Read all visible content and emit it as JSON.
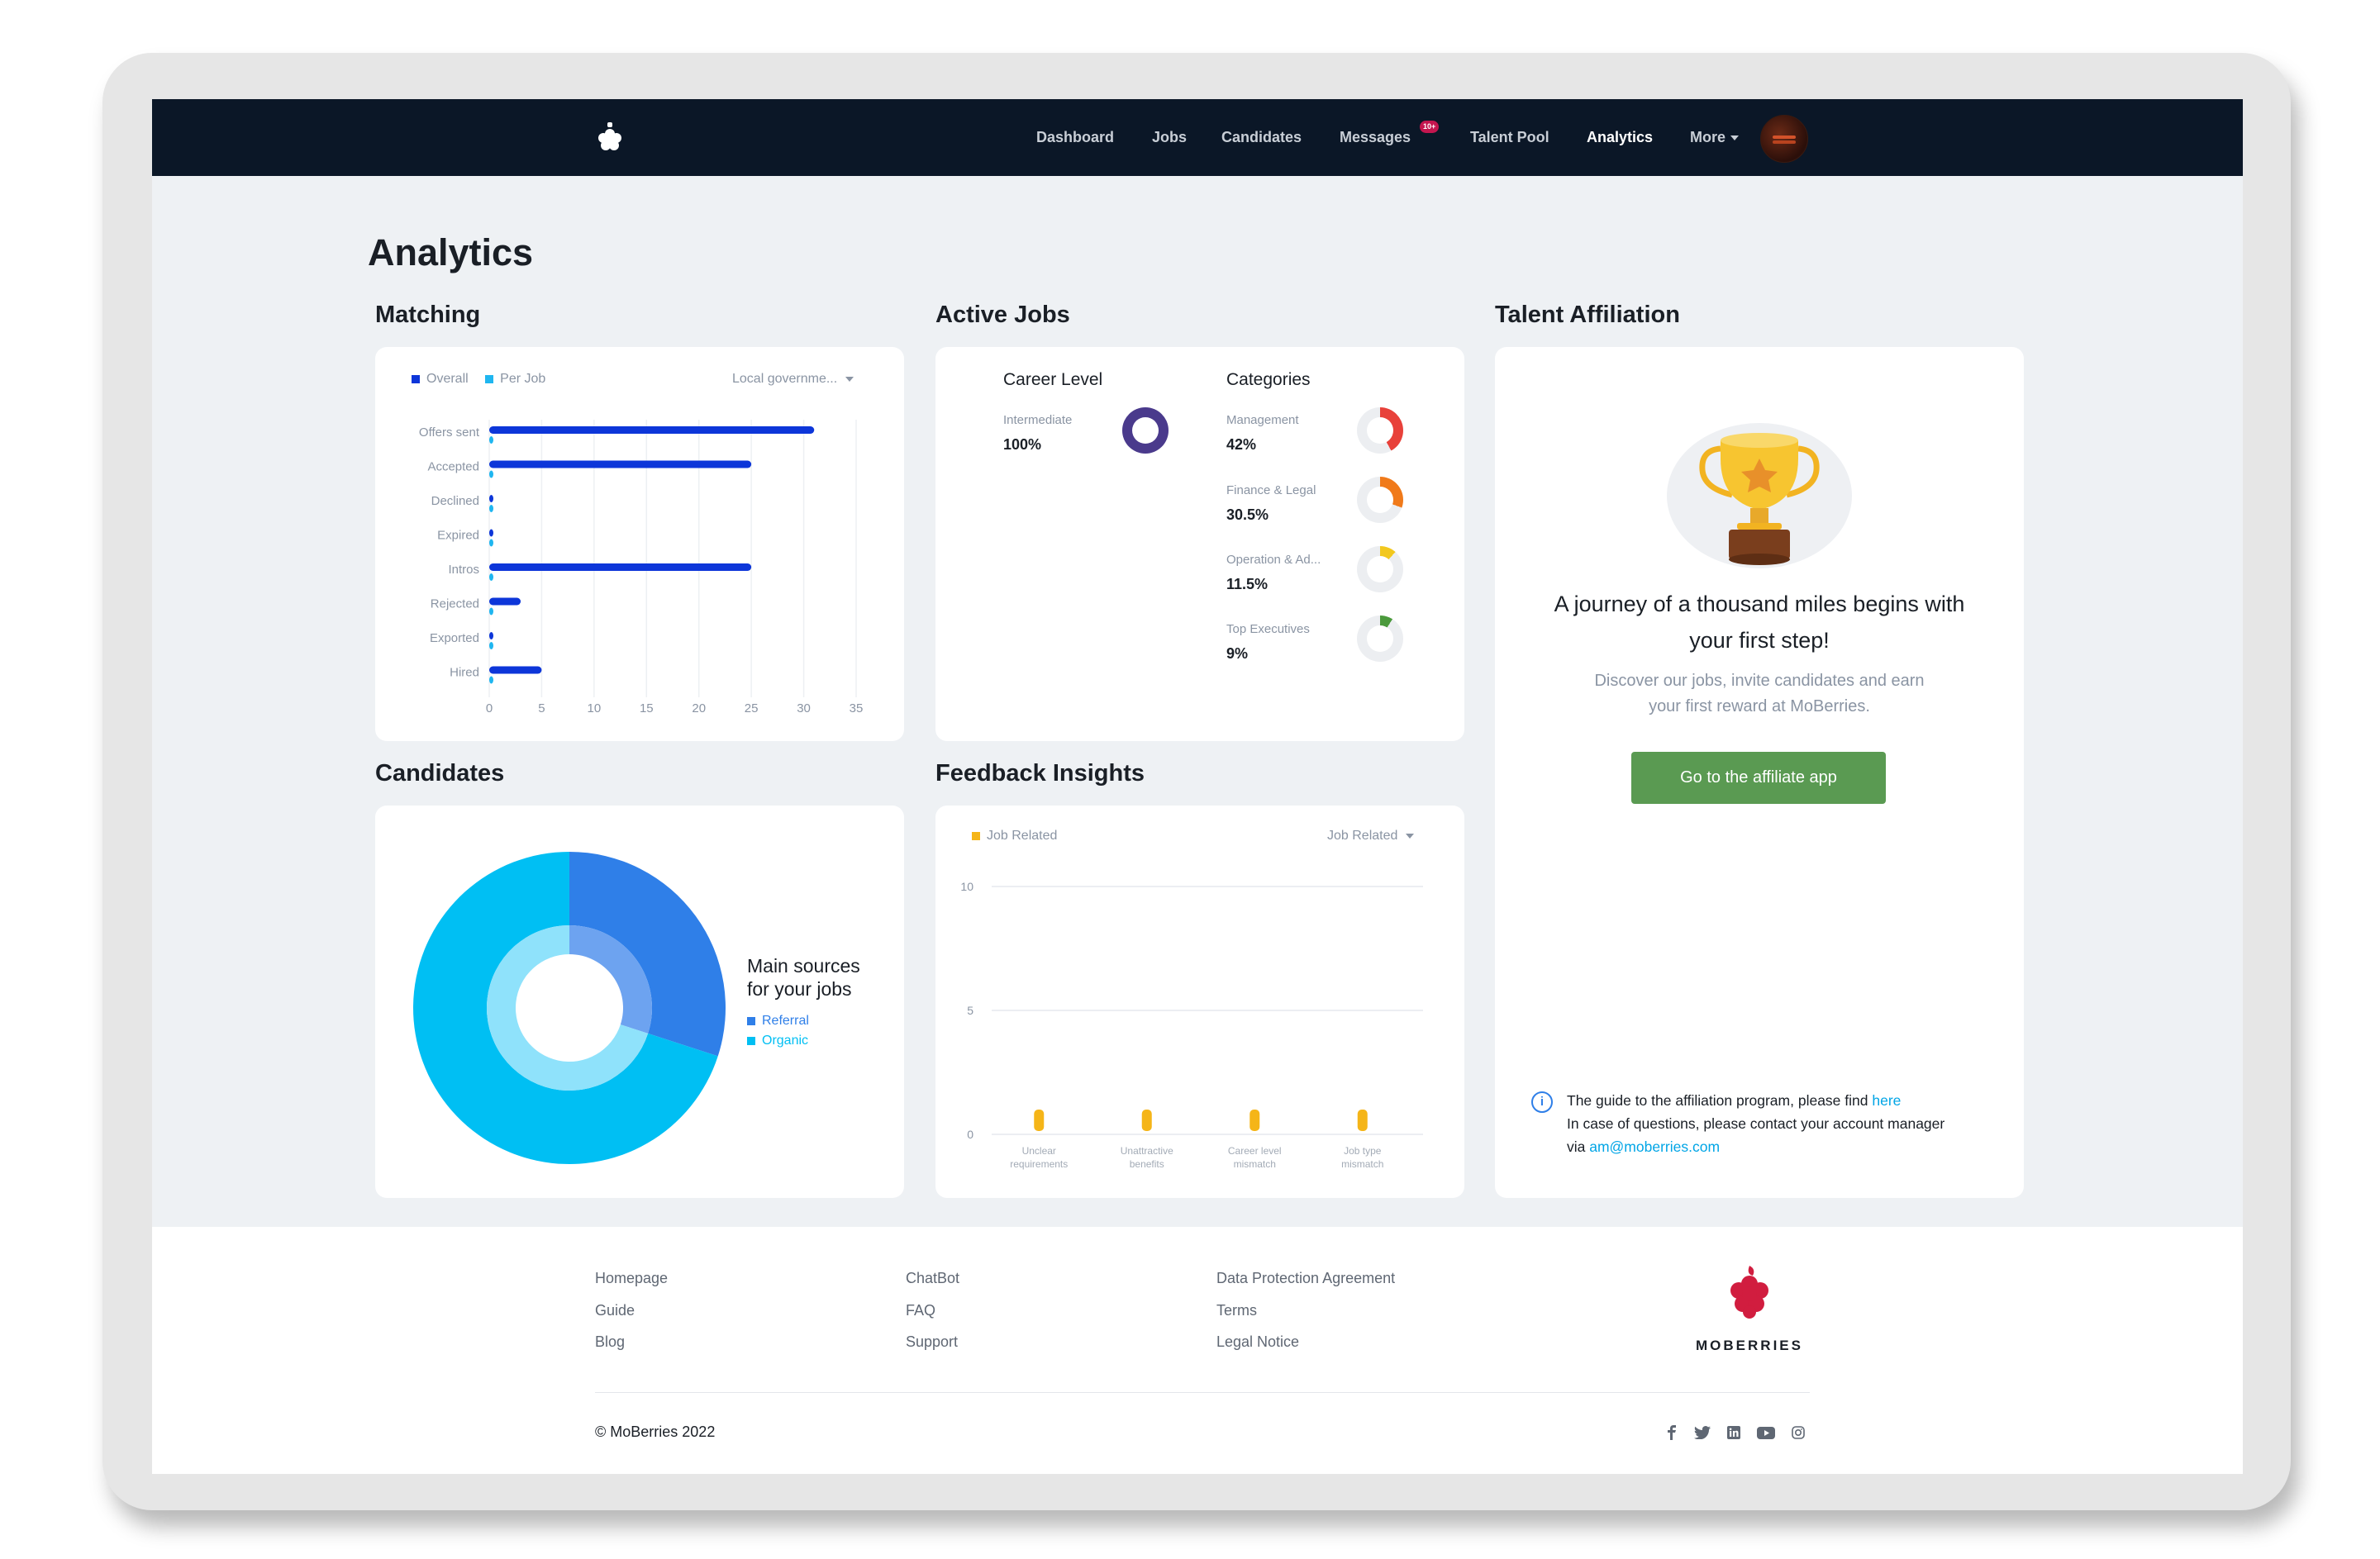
{
  "nav": {
    "items": [
      {
        "label": "Dashboard"
      },
      {
        "label": "Jobs"
      },
      {
        "label": "Candidates"
      },
      {
        "label": "Messages",
        "badge": "10+"
      },
      {
        "label": "Talent Pool"
      },
      {
        "label": "Analytics",
        "active": true
      },
      {
        "label": "More"
      }
    ]
  },
  "page": {
    "title": "Analytics"
  },
  "matching": {
    "title": "Matching",
    "legend": [
      "Overall",
      "Per Job"
    ],
    "dropdown": "Local governme...",
    "colors": {
      "overall": "#0d36d9",
      "per_job": "#1fb6f0"
    }
  },
  "active_jobs": {
    "title": "Active Jobs",
    "career_level": {
      "header": "Career Level",
      "items": [
        {
          "name": "Intermediate",
          "value": "100%",
          "fraction": 1.0,
          "color": "#4a3a8c"
        }
      ]
    },
    "categories": {
      "header": "Categories",
      "items": [
        {
          "name": "Management",
          "value": "42%",
          "fraction": 0.42,
          "color": "#e8413a"
        },
        {
          "name": "Finance & Legal",
          "value": "30.5%",
          "fraction": 0.305,
          "color": "#f07a1a"
        },
        {
          "name": "Operation & Ad...",
          "value": "11.5%",
          "fraction": 0.115,
          "color": "#f2c81e"
        },
        {
          "name": "Top Executives",
          "value": "9%",
          "fraction": 0.09,
          "color": "#4b9a3c"
        }
      ]
    }
  },
  "talent": {
    "title": "Talent Affiliation",
    "headline_line1": "A journey of a thousand miles begins with",
    "headline_line2": "your first step!",
    "sub_line1": "Discover our jobs, invite candidates and earn",
    "sub_line2": "your first reward at MoBerries.",
    "button": "Go to the affiliate app",
    "info_line1_prefix": "The guide to the affiliation program, please find ",
    "info_link": "here",
    "info_line2": "In case of questions, please contact your account manager",
    "info_line3_prefix": "via ",
    "info_email": "am@moberries.com"
  },
  "candidates": {
    "title": "Candidates",
    "legend_title_1": "Main sources",
    "legend_title_2": "for your jobs",
    "legend": [
      {
        "name": "Referral",
        "color": "#2f7fe8"
      },
      {
        "name": "Organic",
        "color": "#00bff3"
      }
    ]
  },
  "feedback": {
    "title": "Feedback Insights",
    "legend": "Job Related",
    "dropdown": "Job Related",
    "color": "#f5b518"
  },
  "chart_data": [
    {
      "type": "bar",
      "orientation": "horizontal",
      "categories": [
        "Offers sent",
        "Accepted",
        "Declined",
        "Expired",
        "Intros",
        "Rejected",
        "Exported",
        "Hired"
      ],
      "series": [
        {
          "name": "Overall",
          "values": [
            31,
            25,
            0,
            0,
            25,
            3,
            0,
            5
          ]
        },
        {
          "name": "Per Job",
          "values": [
            0,
            0,
            0,
            0,
            0,
            0,
            0,
            0
          ]
        }
      ],
      "xlim": [
        0,
        35
      ],
      "xticks": [
        0,
        5,
        10,
        15,
        20,
        25,
        30,
        35
      ],
      "grid": true,
      "legend": "top-left"
    },
    {
      "type": "pie",
      "variant": "nested-donut",
      "series": [
        {
          "name": "Referral",
          "values": [
            0.3
          ]
        },
        {
          "name": "Organic",
          "values": [
            0.7
          ]
        }
      ],
      "legend": "right"
    },
    {
      "type": "bar",
      "categories": [
        [
          "Unclear",
          "requirements"
        ],
        [
          "Unattractive",
          "benefits"
        ],
        [
          "Career level",
          "mismatch"
        ],
        [
          "Job type",
          "mismatch"
        ]
      ],
      "series": [
        {
          "name": "Job Related",
          "values": [
            1,
            1,
            1,
            1
          ]
        }
      ],
      "ylim": [
        0,
        10
      ],
      "yticks": [
        0,
        5,
        10
      ],
      "grid": true,
      "legend": "top-left"
    }
  ],
  "footer": {
    "col1": [
      "Homepage",
      "Guide",
      "Blog"
    ],
    "col2": [
      "ChatBot",
      "FAQ",
      "Support"
    ],
    "col3": [
      "Data Protection Agreement",
      "Terms",
      "Legal Notice"
    ],
    "brand": "MOBERRIES",
    "copyright": "© MoBerries 2022",
    "social": [
      "facebook-icon",
      "twitter-icon",
      "linkedin-icon",
      "youtube-icon",
      "instagram-icon"
    ]
  }
}
